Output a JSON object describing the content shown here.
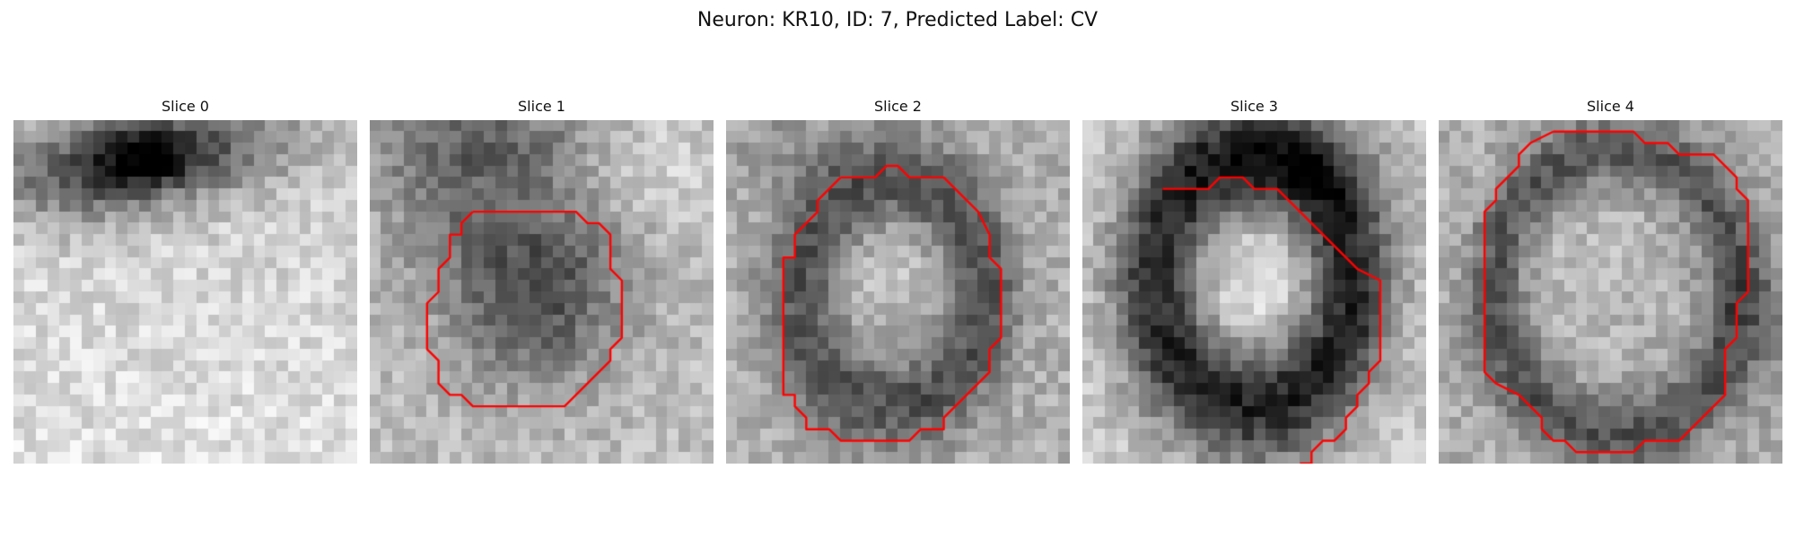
{
  "figure": {
    "suptitle": "Neuron: KR10, ID: 7, Predicted Label: CV",
    "contour_color": "#ff0000",
    "colormap": "gray",
    "grid_size": 30
  },
  "panels": [
    {
      "title": "Slice 0",
      "image": "grayscale-patch-bright-lower-dark-upper",
      "contour": []
    },
    {
      "title": "Slice 1",
      "image": "grayscale-patch-dark-blob-center",
      "contour": [
        [
          9,
          8
        ],
        [
          18,
          8
        ],
        [
          19,
          9
        ],
        [
          20,
          9
        ],
        [
          21,
          10
        ],
        [
          21,
          13
        ],
        [
          22,
          14
        ],
        [
          22,
          19
        ],
        [
          21,
          20
        ],
        [
          21,
          21
        ],
        [
          20,
          22
        ],
        [
          19,
          23
        ],
        [
          17,
          25
        ],
        [
          9,
          25
        ],
        [
          8,
          24
        ],
        [
          7,
          24
        ],
        [
          6,
          23
        ],
        [
          6,
          21
        ],
        [
          5,
          20
        ],
        [
          5,
          16
        ],
        [
          6,
          15
        ],
        [
          6,
          13
        ],
        [
          7,
          12
        ],
        [
          7,
          10
        ],
        [
          8,
          10
        ],
        [
          8,
          9
        ],
        [
          9,
          8
        ]
      ]
    },
    {
      "title": "Slice 2",
      "image": "grayscale-patch-dark-ring",
      "contour": [
        [
          10,
          5
        ],
        [
          13,
          5
        ],
        [
          14,
          4
        ],
        [
          15,
          4
        ],
        [
          16,
          5
        ],
        [
          19,
          5
        ],
        [
          20,
          6
        ],
        [
          21,
          7
        ],
        [
          22,
          8
        ],
        [
          23,
          10
        ],
        [
          23,
          12
        ],
        [
          24,
          13
        ],
        [
          24,
          19
        ],
        [
          23,
          20
        ],
        [
          23,
          22
        ],
        [
          22,
          23
        ],
        [
          21,
          24
        ],
        [
          20,
          25
        ],
        [
          19,
          26
        ],
        [
          19,
          27
        ],
        [
          17,
          27
        ],
        [
          16,
          28
        ],
        [
          10,
          28
        ],
        [
          9,
          27
        ],
        [
          7,
          27
        ],
        [
          7,
          26
        ],
        [
          6,
          25
        ],
        [
          6,
          24
        ],
        [
          5,
          24
        ],
        [
          5,
          12
        ],
        [
          6,
          12
        ],
        [
          6,
          10
        ],
        [
          7,
          9
        ],
        [
          8,
          8
        ],
        [
          8,
          7
        ],
        [
          9,
          6
        ],
        [
          10,
          5
        ]
      ]
    },
    {
      "title": "Slice 3",
      "image": "grayscale-patch-dark-ring-bright-core",
      "contour": [
        [
          7,
          6
        ],
        [
          11,
          6
        ],
        [
          12,
          5
        ],
        [
          14,
          5
        ],
        [
          15,
          6
        ],
        [
          17,
          6
        ],
        [
          18,
          7
        ],
        [
          19,
          8
        ],
        [
          20,
          9
        ],
        [
          21,
          10
        ],
        [
          22,
          11
        ],
        [
          23,
          12
        ],
        [
          24,
          13
        ],
        [
          26,
          14
        ],
        [
          26,
          21
        ],
        [
          25,
          22
        ],
        [
          25,
          23
        ],
        [
          24,
          24
        ],
        [
          24,
          25
        ],
        [
          23,
          26
        ],
        [
          23,
          27
        ],
        [
          22,
          28
        ],
        [
          21,
          28
        ],
        [
          20,
          29
        ],
        [
          20,
          30
        ],
        [
          19,
          30
        ]
      ]
    },
    {
      "title": "Slice 4",
      "image": "grayscale-patch-bright-disc-dark-rim",
      "contour": [
        [
          10,
          1
        ],
        [
          17,
          1
        ],
        [
          18,
          2
        ],
        [
          20,
          2
        ],
        [
          21,
          3
        ],
        [
          24,
          3
        ],
        [
          25,
          4
        ],
        [
          26,
          5
        ],
        [
          26,
          6
        ],
        [
          27,
          7
        ],
        [
          27,
          15
        ],
        [
          26,
          16
        ],
        [
          26,
          19
        ],
        [
          25,
          20
        ],
        [
          25,
          24
        ],
        [
          24,
          25
        ],
        [
          23,
          26
        ],
        [
          22,
          27
        ],
        [
          21,
          28
        ],
        [
          18,
          28
        ],
        [
          17,
          29
        ],
        [
          12,
          29
        ],
        [
          11,
          28
        ],
        [
          10,
          28
        ],
        [
          9,
          27
        ],
        [
          9,
          26
        ],
        [
          8,
          25
        ],
        [
          7,
          24
        ],
        [
          5,
          23
        ],
        [
          4,
          22
        ],
        [
          4,
          11
        ],
        [
          4,
          10
        ],
        [
          4,
          9
        ],
        [
          4,
          8
        ],
        [
          5,
          7
        ],
        [
          5,
          6
        ],
        [
          6,
          5
        ],
        [
          7,
          4
        ],
        [
          7,
          3
        ],
        [
          8,
          2
        ],
        [
          10,
          1
        ]
      ]
    }
  ]
}
